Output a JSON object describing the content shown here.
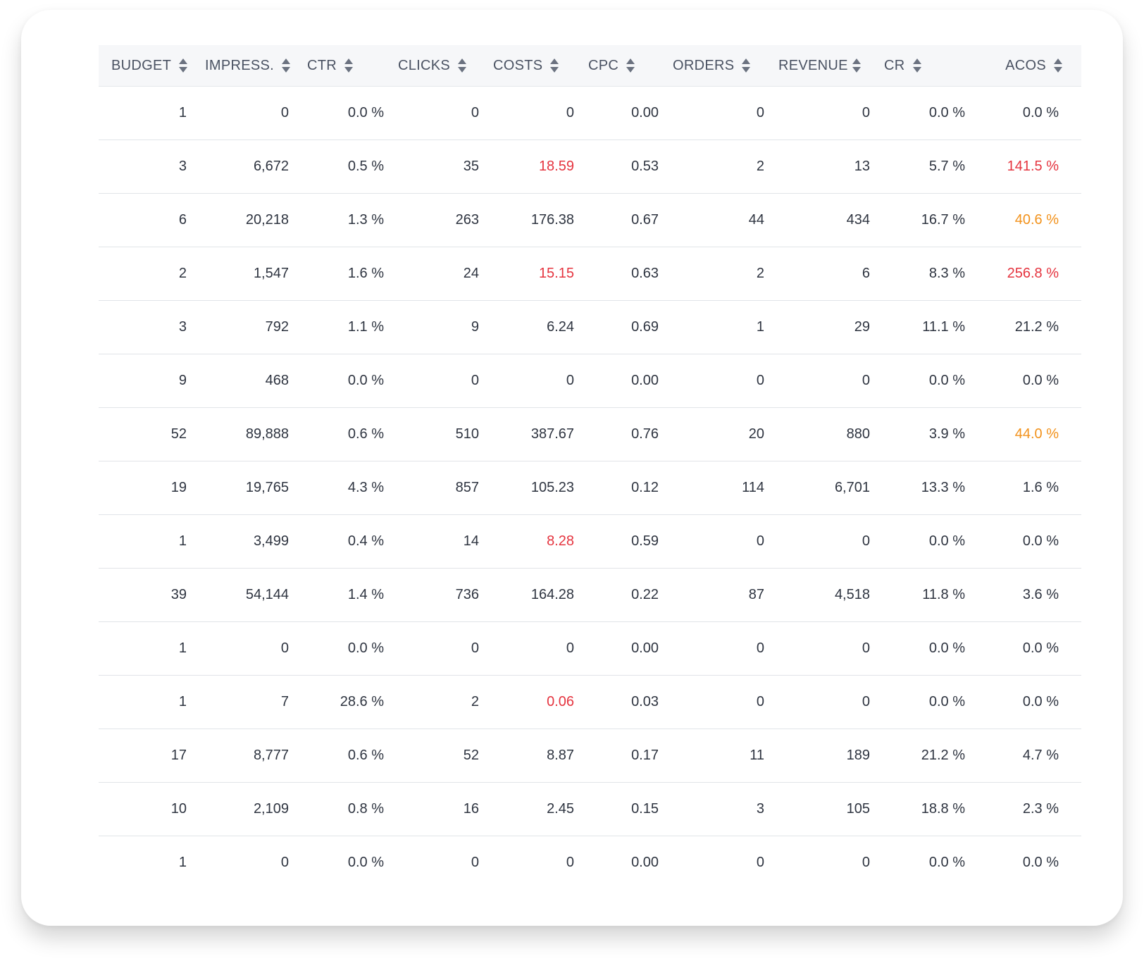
{
  "columns": [
    {
      "label": "BUDGET"
    },
    {
      "label": "IMPRESS."
    },
    {
      "label": "CTR"
    },
    {
      "label": "CLICKS"
    },
    {
      "label": "COSTS"
    },
    {
      "label": "CPC"
    },
    {
      "label": "ORDERS"
    },
    {
      "label": "REVENUES"
    },
    {
      "label": "CR"
    },
    {
      "label": "ACOS"
    }
  ],
  "status_colors": {
    "red": "#e5343f",
    "orange": "#f2921c"
  },
  "sort_icon": "sort-arrows-icon",
  "rows": [
    {
      "budget": "1",
      "impress": "0",
      "ctr": "0.0 %",
      "clicks": "0",
      "costs": "0",
      "costs_status": "",
      "cpc": "0.00",
      "orders": "0",
      "revenues": "0",
      "cr": "0.0 %",
      "acos": "0.0 %",
      "acos_status": ""
    },
    {
      "budget": "3",
      "impress": "6,672",
      "ctr": "0.5 %",
      "clicks": "35",
      "costs": "18.59",
      "costs_status": "red",
      "cpc": "0.53",
      "orders": "2",
      "revenues": "13",
      "cr": "5.7 %",
      "acos": "141.5 %",
      "acos_status": "red"
    },
    {
      "budget": "6",
      "impress": "20,218",
      "ctr": "1.3 %",
      "clicks": "263",
      "costs": "176.38",
      "costs_status": "",
      "cpc": "0.67",
      "orders": "44",
      "revenues": "434",
      "cr": "16.7 %",
      "acos": "40.6 %",
      "acos_status": "orange"
    },
    {
      "budget": "2",
      "impress": "1,547",
      "ctr": "1.6 %",
      "clicks": "24",
      "costs": "15.15",
      "costs_status": "red",
      "cpc": "0.63",
      "orders": "2",
      "revenues": "6",
      "cr": "8.3 %",
      "acos": "256.8 %",
      "acos_status": "red"
    },
    {
      "budget": "3",
      "impress": "792",
      "ctr": "1.1 %",
      "clicks": "9",
      "costs": "6.24",
      "costs_status": "",
      "cpc": "0.69",
      "orders": "1",
      "revenues": "29",
      "cr": "11.1 %",
      "acos": "21.2 %",
      "acos_status": ""
    },
    {
      "budget": "9",
      "impress": "468",
      "ctr": "0.0 %",
      "clicks": "0",
      "costs": "0",
      "costs_status": "",
      "cpc": "0.00",
      "orders": "0",
      "revenues": "0",
      "cr": "0.0 %",
      "acos": "0.0 %",
      "acos_status": ""
    },
    {
      "budget": "52",
      "impress": "89,888",
      "ctr": "0.6 %",
      "clicks": "510",
      "costs": "387.67",
      "costs_status": "",
      "cpc": "0.76",
      "orders": "20",
      "revenues": "880",
      "cr": "3.9 %",
      "acos": "44.0 %",
      "acos_status": "orange"
    },
    {
      "budget": "19",
      "impress": "19,765",
      "ctr": "4.3 %",
      "clicks": "857",
      "costs": "105.23",
      "costs_status": "",
      "cpc": "0.12",
      "orders": "114",
      "revenues": "6,701",
      "cr": "13.3 %",
      "acos": "1.6 %",
      "acos_status": ""
    },
    {
      "budget": "1",
      "impress": "3,499",
      "ctr": "0.4 %",
      "clicks": "14",
      "costs": "8.28",
      "costs_status": "red",
      "cpc": "0.59",
      "orders": "0",
      "revenues": "0",
      "cr": "0.0 %",
      "acos": "0.0 %",
      "acos_status": ""
    },
    {
      "budget": "39",
      "impress": "54,144",
      "ctr": "1.4 %",
      "clicks": "736",
      "costs": "164.28",
      "costs_status": "",
      "cpc": "0.22",
      "orders": "87",
      "revenues": "4,518",
      "cr": "11.8 %",
      "acos": "3.6 %",
      "acos_status": ""
    },
    {
      "budget": "1",
      "impress": "0",
      "ctr": "0.0 %",
      "clicks": "0",
      "costs": "0",
      "costs_status": "",
      "cpc": "0.00",
      "orders": "0",
      "revenues": "0",
      "cr": "0.0 %",
      "acos": "0.0 %",
      "acos_status": ""
    },
    {
      "budget": "1",
      "impress": "7",
      "ctr": "28.6 %",
      "clicks": "2",
      "costs": "0.06",
      "costs_status": "red",
      "cpc": "0.03",
      "orders": "0",
      "revenues": "0",
      "cr": "0.0 %",
      "acos": "0.0 %",
      "acos_status": ""
    },
    {
      "budget": "17",
      "impress": "8,777",
      "ctr": "0.6 %",
      "clicks": "52",
      "costs": "8.87",
      "costs_status": "",
      "cpc": "0.17",
      "orders": "11",
      "revenues": "189",
      "cr": "21.2 %",
      "acos": "4.7 %",
      "acos_status": ""
    },
    {
      "budget": "10",
      "impress": "2,109",
      "ctr": "0.8 %",
      "clicks": "16",
      "costs": "2.45",
      "costs_status": "",
      "cpc": "0.15",
      "orders": "3",
      "revenues": "105",
      "cr": "18.8 %",
      "acos": "2.3 %",
      "acos_status": ""
    },
    {
      "budget": "1",
      "impress": "0",
      "ctr": "0.0 %",
      "clicks": "0",
      "costs": "0",
      "costs_status": "",
      "cpc": "0.00",
      "orders": "0",
      "revenues": "0",
      "cr": "0.0 %",
      "acos": "0.0 %",
      "acos_status": ""
    }
  ]
}
